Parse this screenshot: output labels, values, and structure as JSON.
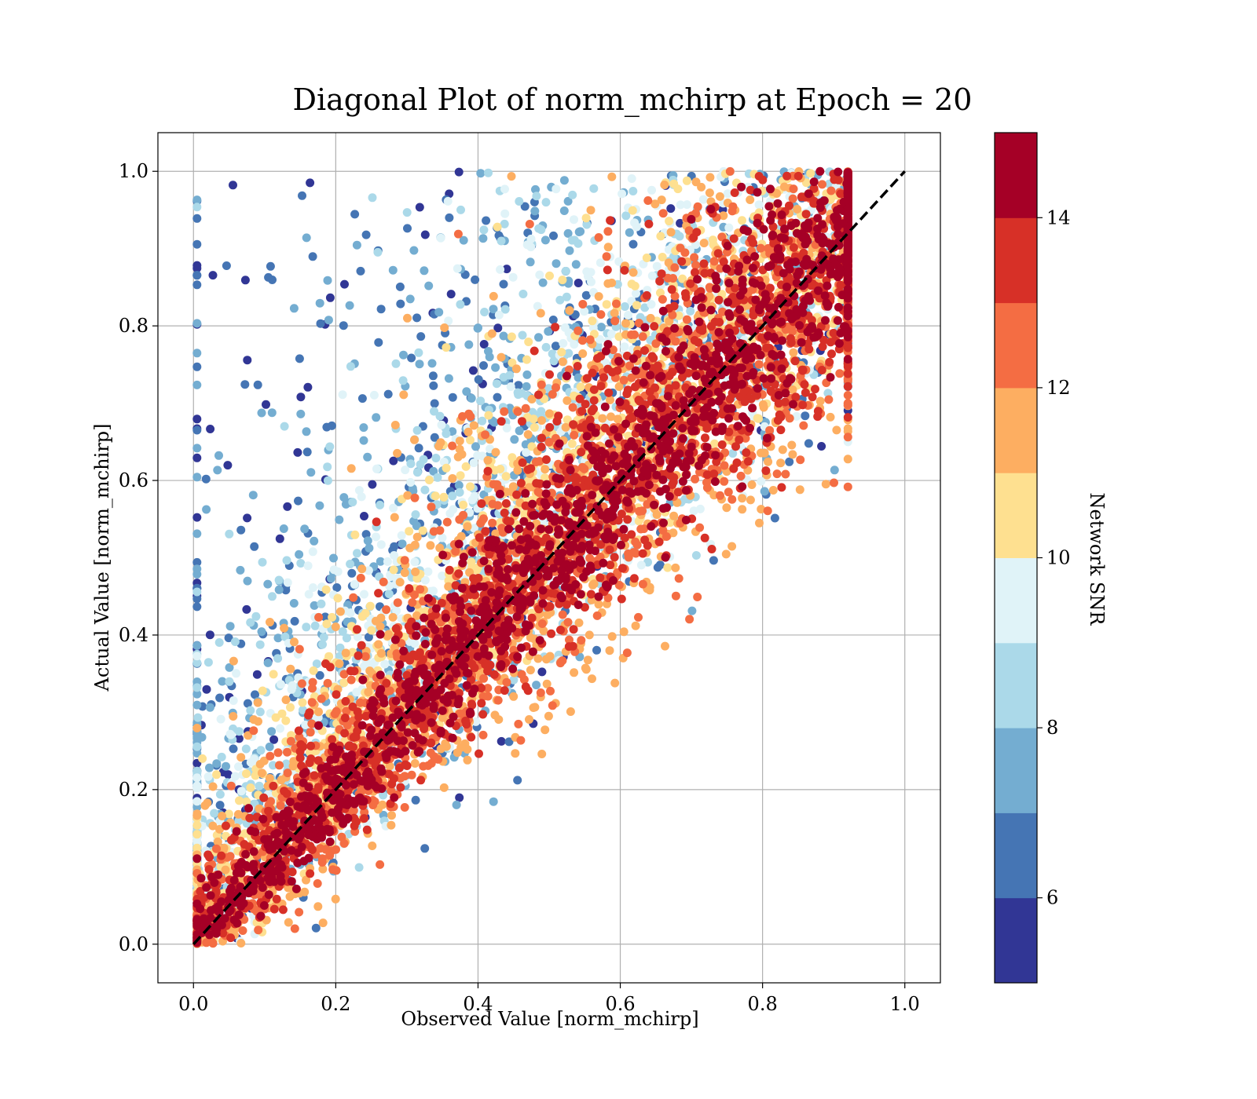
{
  "chart_data": {
    "type": "scatter",
    "title": "Diagonal Plot of norm_mchirp at Epoch = 20",
    "xlabel": "Observed Value [norm_mchirp]",
    "ylabel": "Actual Value [norm_mchirp]",
    "xlim": [
      -0.05,
      1.05
    ],
    "ylim": [
      -0.05,
      1.05
    ],
    "xticks": [
      "0.0",
      "0.2",
      "0.4",
      "0.6",
      "0.8",
      "1.0"
    ],
    "yticks": [
      "0.0",
      "0.2",
      "0.4",
      "0.6",
      "0.8",
      "1.0"
    ],
    "grid": true,
    "reference_line": {
      "style": "dashed",
      "color": "#000000",
      "points": [
        [
          0,
          0
        ],
        [
          1,
          1
        ]
      ]
    },
    "colorbar": {
      "label": "Network SNR",
      "range": [
        5,
        15
      ],
      "ticks": [
        "6",
        "8",
        "10",
        "12",
        "14"
      ],
      "tick_values": [
        6,
        8,
        10,
        12,
        14
      ],
      "colors": [
        "#313695",
        "#4575b4",
        "#74add1",
        "#abd9e9",
        "#e0f3f8",
        "#fee090",
        "#fdae61",
        "#f46d43",
        "#d73027",
        "#a50026"
      ]
    },
    "description_of_points": "Dense cloud of points around the diagonal; high-SNR points (dark red) concentrate along y = x with narrow spread, lower-SNR points (blue) spread widely, mostly above the diagonal at small observed values."
  }
}
